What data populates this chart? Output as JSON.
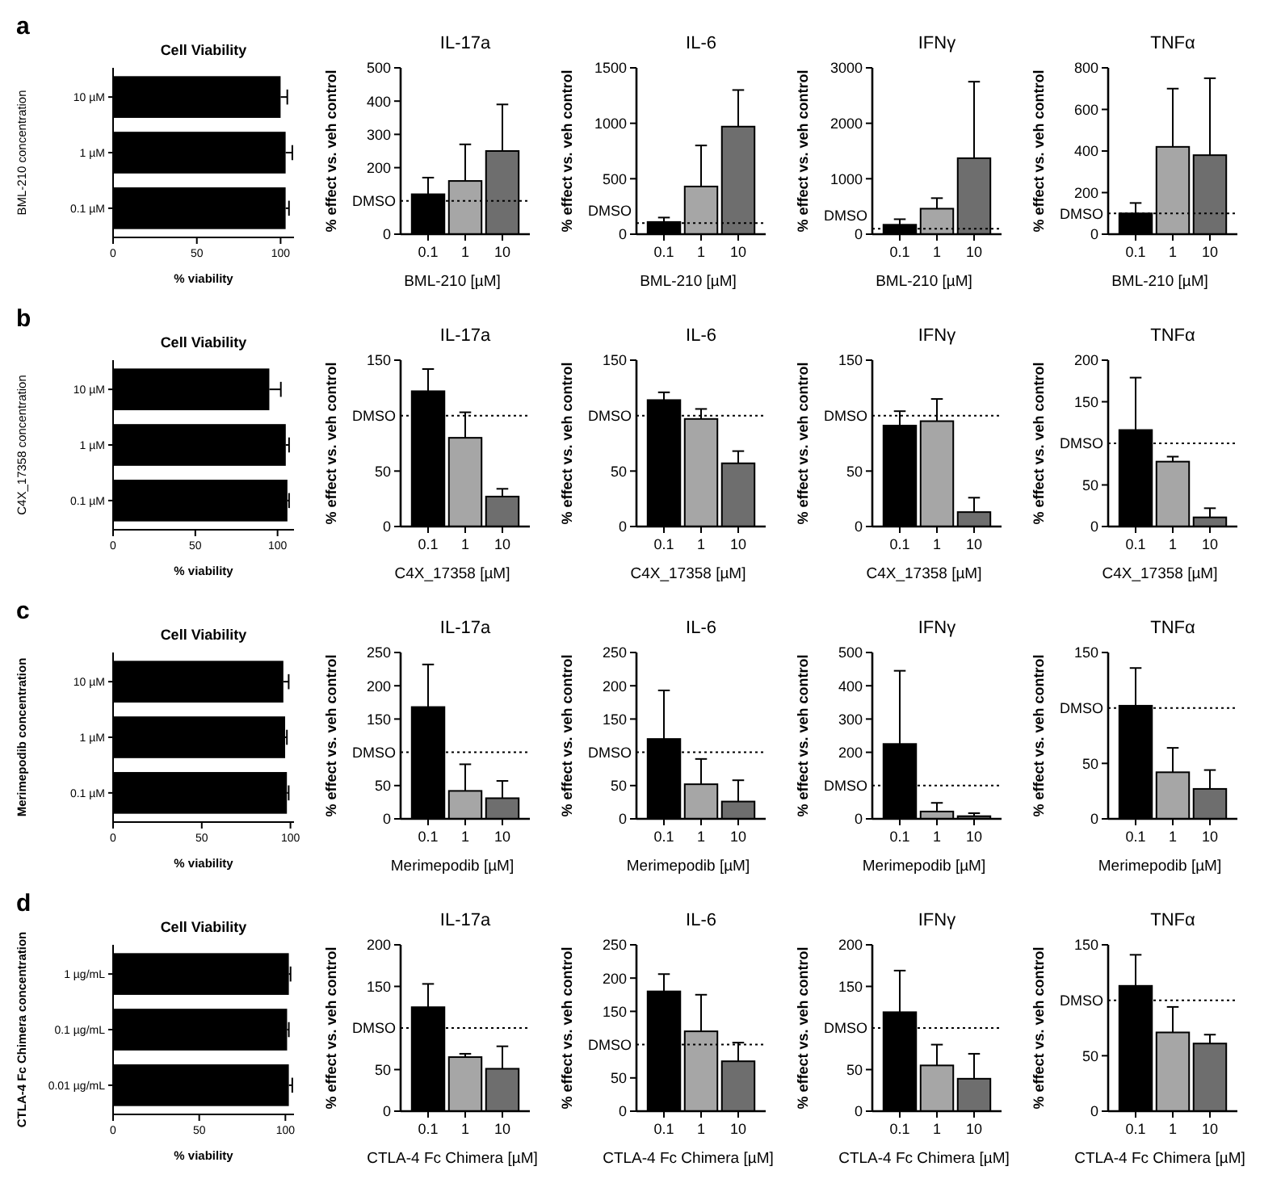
{
  "chart_data": [
    {
      "type": "bar",
      "orientation": "horizontal",
      "title": "Cell Viability",
      "xlabel": "% viability",
      "ylabel": "BML-210 concentration",
      "categories": [
        "10 µM",
        "1 µM",
        "0.1 µM"
      ],
      "values": [
        100,
        103,
        103
      ],
      "errors": [
        [
          100,
          104
        ],
        [
          103,
          107
        ],
        [
          103,
          105
        ]
      ],
      "color": "#000000",
      "xlim": [
        0,
        108
      ],
      "xticks": [
        0,
        50,
        100
      ],
      "annotations": [
        "a"
      ]
    },
    {
      "type": "bar",
      "title": "IL-17a",
      "xlabel": "BML-210 [µM]",
      "ylabel": "% effect vs. veh control",
      "categories": [
        "0.1",
        "1",
        "10"
      ],
      "values": [
        120,
        160,
        250
      ],
      "errors": [
        [
          120,
          170
        ],
        [
          160,
          270
        ],
        [
          250,
          390
        ]
      ],
      "colors": [
        "#000000",
        "#a6a6a6",
        "#6e6e6e"
      ],
      "ylim": [
        0,
        500
      ],
      "yticks": [
        0,
        200,
        300,
        400,
        500
      ],
      "ref_lines": [
        {
          "axis": "y",
          "value": 100,
          "label": "DMSO",
          "line_style": "dotted"
        }
      ]
    },
    {
      "type": "bar",
      "title": "IL-6",
      "xlabel": "BML-210 [µM]",
      "ylabel": "% effect vs. veh control",
      "categories": [
        "0.1",
        "1",
        "10"
      ],
      "values": [
        110,
        430,
        970
      ],
      "errors": [
        [
          110,
          150
        ],
        [
          430,
          800
        ],
        [
          970,
          1300
        ]
      ],
      "colors": [
        "#000000",
        "#a6a6a6",
        "#6e6e6e"
      ],
      "ylim": [
        0,
        1500
      ],
      "yticks": [
        0,
        500,
        1000,
        1500
      ],
      "ref_lines": [
        {
          "axis": "y",
          "value": 100,
          "label": "DMSO",
          "line_style": "dotted"
        }
      ]
    },
    {
      "type": "bar",
      "title": "IFNγ",
      "xlabel": "BML-210 [µM]",
      "ylabel": "% effect vs. veh control",
      "categories": [
        "0.1",
        "1",
        "10"
      ],
      "values": [
        170,
        460,
        1370
      ],
      "errors": [
        [
          170,
          270
        ],
        [
          460,
          650
        ],
        [
          1370,
          2750
        ]
      ],
      "colors": [
        "#000000",
        "#a6a6a6",
        "#6e6e6e"
      ],
      "ylim": [
        0,
        3000
      ],
      "yticks": [
        0,
        1000,
        2000,
        3000
      ],
      "ref_lines": [
        {
          "axis": "y",
          "value": 100,
          "label": "DMSO",
          "line_style": "dotted"
        }
      ]
    },
    {
      "type": "bar",
      "title": "TNFα",
      "xlabel": "BML-210 [µM]",
      "ylabel": "% effect vs. veh control",
      "categories": [
        "0.1",
        "1",
        "10"
      ],
      "values": [
        100,
        420,
        380
      ],
      "errors": [
        [
          100,
          150
        ],
        [
          420,
          700
        ],
        [
          380,
          750
        ]
      ],
      "colors": [
        "#000000",
        "#a6a6a6",
        "#6e6e6e"
      ],
      "ylim": [
        0,
        800
      ],
      "yticks": [
        0,
        200,
        400,
        600,
        800
      ],
      "ref_lines": [
        {
          "axis": "y",
          "value": 100,
          "label": "DMSO",
          "line_style": "dotted"
        }
      ]
    },
    {
      "type": "bar",
      "orientation": "horizontal",
      "title": "Cell Viability",
      "xlabel": "% viability",
      "ylabel": "C4X_17358 concentration",
      "categories": [
        "10 µM",
        "1 µM",
        "0.1 µM"
      ],
      "values": [
        95,
        105,
        106
      ],
      "errors": [
        [
          95,
          102
        ],
        [
          105,
          107
        ],
        [
          106,
          107
        ]
      ],
      "color": "#000000",
      "xlim": [
        0,
        110
      ],
      "xticks": [
        0,
        50,
        100
      ],
      "annotations": [
        "b"
      ]
    },
    {
      "type": "bar",
      "title": "IL-17a",
      "xlabel": "C4X_17358 [µM]",
      "ylabel": "% effect vs. veh control",
      "categories": [
        "0.1",
        "1",
        "10"
      ],
      "values": [
        122,
        80,
        27
      ],
      "errors": [
        [
          122,
          142
        ],
        [
          80,
          103
        ],
        [
          27,
          34
        ]
      ],
      "colors": [
        "#000000",
        "#a6a6a6",
        "#6e6e6e"
      ],
      "ylim": [
        0,
        150
      ],
      "yticks": [
        0,
        50,
        150
      ],
      "ref_lines": [
        {
          "axis": "y",
          "value": 100,
          "label": "DMSO",
          "line_style": "dotted"
        }
      ]
    },
    {
      "type": "bar",
      "title": "IL-6",
      "xlabel": "C4X_17358 [µM]",
      "ylabel": "% effect vs. veh control",
      "categories": [
        "0.1",
        "1",
        "10"
      ],
      "values": [
        114,
        97,
        57
      ],
      "errors": [
        [
          114,
          121
        ],
        [
          97,
          106
        ],
        [
          57,
          68
        ]
      ],
      "colors": [
        "#000000",
        "#a6a6a6",
        "#6e6e6e"
      ],
      "ylim": [
        0,
        150
      ],
      "yticks": [
        0,
        50,
        150
      ],
      "ref_lines": [
        {
          "axis": "y",
          "value": 100,
          "label": "DMSO",
          "line_style": "dotted"
        }
      ]
    },
    {
      "type": "bar",
      "title": "IFNγ",
      "xlabel": "C4X_17358 [µM]",
      "ylabel": "% effect vs. veh control",
      "categories": [
        "0.1",
        "1",
        "10"
      ],
      "values": [
        91,
        95,
        13
      ],
      "errors": [
        [
          91,
          104
        ],
        [
          95,
          115
        ],
        [
          13,
          26
        ]
      ],
      "colors": [
        "#000000",
        "#a6a6a6",
        "#6e6e6e"
      ],
      "ylim": [
        0,
        150
      ],
      "yticks": [
        0,
        50,
        150
      ],
      "ref_lines": [
        {
          "axis": "y",
          "value": 100,
          "label": "DMSO",
          "line_style": "dotted"
        }
      ]
    },
    {
      "type": "bar",
      "title": "TNFα",
      "xlabel": "C4X_17358 [µM]",
      "ylabel": "% effect vs. veh control",
      "categories": [
        "0.1",
        "1",
        "10"
      ],
      "values": [
        116,
        78,
        11
      ],
      "errors": [
        [
          116,
          179
        ],
        [
          78,
          84
        ],
        [
          11,
          22
        ]
      ],
      "colors": [
        "#000000",
        "#a6a6a6",
        "#6e6e6e"
      ],
      "ylim": [
        0,
        200
      ],
      "yticks": [
        0,
        50,
        150,
        200
      ],
      "ref_lines": [
        {
          "axis": "y",
          "value": 100,
          "label": "DMSO",
          "line_style": "dotted"
        }
      ]
    },
    {
      "type": "bar",
      "orientation": "horizontal",
      "title": "Cell Viability",
      "xlabel": "% viability",
      "ylabel": "Merimepodib concentration",
      "categories": [
        "10 µM",
        "1 µM",
        "0.1 µM"
      ],
      "values": [
        96,
        97,
        98
      ],
      "errors": [
        [
          96,
          99
        ],
        [
          97,
          98
        ],
        [
          98,
          99
        ]
      ],
      "color": "#000000",
      "xlim": [
        0,
        102
      ],
      "xticks": [
        0,
        50,
        100
      ],
      "annotations": [
        "c"
      ]
    },
    {
      "type": "bar",
      "title": "IL-17a",
      "xlabel": "Merimepodib [µM]",
      "ylabel": "% effect vs. veh control",
      "categories": [
        "0.1",
        "1",
        "10"
      ],
      "values": [
        168,
        42,
        31
      ],
      "errors": [
        [
          168,
          232
        ],
        [
          42,
          82
        ],
        [
          31,
          57
        ]
      ],
      "colors": [
        "#000000",
        "#a6a6a6",
        "#6e6e6e"
      ],
      "ylim": [
        0,
        250
      ],
      "yticks": [
        0,
        50,
        150,
        200,
        250
      ],
      "ref_lines": [
        {
          "axis": "y",
          "value": 100,
          "label": "DMSO",
          "line_style": "dotted"
        }
      ]
    },
    {
      "type": "bar",
      "title": "IL-6",
      "xlabel": "Merimepodib [µM]",
      "ylabel": "% effect vs. veh control",
      "categories": [
        "0.1",
        "1",
        "10"
      ],
      "values": [
        120,
        52,
        26
      ],
      "errors": [
        [
          120,
          193
        ],
        [
          52,
          90
        ],
        [
          26,
          58
        ]
      ],
      "colors": [
        "#000000",
        "#a6a6a6",
        "#6e6e6e"
      ],
      "ylim": [
        0,
        250
      ],
      "yticks": [
        0,
        50,
        150,
        200,
        250
      ],
      "ref_lines": [
        {
          "axis": "y",
          "value": 100,
          "label": "DMSO",
          "line_style": "dotted"
        }
      ]
    },
    {
      "type": "bar",
      "title": "IFNγ",
      "xlabel": "Merimepodib [µM]",
      "ylabel": "% effect vs. veh control",
      "categories": [
        "0.1",
        "1",
        "10"
      ],
      "values": [
        225,
        22,
        8
      ],
      "errors": [
        [
          225,
          445
        ],
        [
          22,
          48
        ],
        [
          8,
          17
        ]
      ],
      "colors": [
        "#000000",
        "#a6a6a6",
        "#6e6e6e"
      ],
      "ylim": [
        0,
        500
      ],
      "yticks": [
        0,
        200,
        300,
        400,
        500
      ],
      "ref_lines": [
        {
          "axis": "y",
          "value": 100,
          "label": "DMSO",
          "line_style": "dotted"
        }
      ]
    },
    {
      "type": "bar",
      "title": "TNFα",
      "xlabel": "Merimepodib [µM]",
      "ylabel": "% effect vs. veh control",
      "categories": [
        "0.1",
        "1",
        "10"
      ],
      "values": [
        102,
        42,
        27
      ],
      "errors": [
        [
          102,
          136
        ],
        [
          42,
          64
        ],
        [
          27,
          44
        ]
      ],
      "colors": [
        "#000000",
        "#a6a6a6",
        "#6e6e6e"
      ],
      "ylim": [
        0,
        150
      ],
      "yticks": [
        0,
        50,
        150
      ],
      "ref_lines": [
        {
          "axis": "y",
          "value": 100,
          "label": "DMSO",
          "line_style": "dotted"
        }
      ]
    },
    {
      "type": "bar",
      "orientation": "horizontal",
      "title": "Cell Viability",
      "xlabel": "% viability",
      "ylabel": "CTLA-4 Fc Chimera  concentration",
      "categories": [
        "1 µg/mL",
        "0.1 µg/mL",
        "0.01 µg/mL"
      ],
      "values": [
        102,
        101,
        102
      ],
      "errors": [
        [
          102,
          103
        ],
        [
          101,
          102
        ],
        [
          102,
          104
        ]
      ],
      "color": "#000000",
      "xlim": [
        0,
        105
      ],
      "xticks": [
        0,
        50,
        100
      ],
      "annotations": [
        "d"
      ]
    },
    {
      "type": "bar",
      "title": "IL-17a",
      "xlabel": "CTLA-4 Fc Chimera [µM]",
      "ylabel": "% effect vs. veh control",
      "categories": [
        "0.1",
        "1",
        "10"
      ],
      "values": [
        125,
        65,
        51
      ],
      "errors": [
        [
          125,
          153
        ],
        [
          65,
          69
        ],
        [
          51,
          78
        ]
      ],
      "colors": [
        "#000000",
        "#a6a6a6",
        "#6e6e6e"
      ],
      "ylim": [
        0,
        200
      ],
      "yticks": [
        0,
        50,
        150,
        200
      ],
      "ref_lines": [
        {
          "axis": "y",
          "value": 100,
          "label": "DMSO",
          "line_style": "dotted"
        }
      ]
    },
    {
      "type": "bar",
      "title": "IL-6",
      "xlabel": "CTLA-4 Fc Chimera [µM]",
      "ylabel": "% effect vs. veh control",
      "categories": [
        "0.1",
        "1",
        "10"
      ],
      "values": [
        180,
        120,
        75
      ],
      "errors": [
        [
          180,
          206
        ],
        [
          120,
          175
        ],
        [
          75,
          103
        ]
      ],
      "colors": [
        "#000000",
        "#a6a6a6",
        "#6e6e6e"
      ],
      "ylim": [
        0,
        250
      ],
      "yticks": [
        0,
        50,
        150,
        200,
        250
      ],
      "ref_lines": [
        {
          "axis": "y",
          "value": 100,
          "label": "DMSO",
          "line_style": "dotted"
        }
      ]
    },
    {
      "type": "bar",
      "title": "IFNγ",
      "xlabel": "CTLA-4 Fc Chimera [µM]",
      "ylabel": "% effect vs. veh control",
      "categories": [
        "0.1",
        "1",
        "10"
      ],
      "values": [
        119,
        55,
        39
      ],
      "errors": [
        [
          119,
          169
        ],
        [
          55,
          80
        ],
        [
          39,
          69
        ]
      ],
      "colors": [
        "#000000",
        "#a6a6a6",
        "#6e6e6e"
      ],
      "ylim": [
        0,
        200
      ],
      "yticks": [
        0,
        50,
        150,
        200
      ],
      "ref_lines": [
        {
          "axis": "y",
          "value": 100,
          "label": "DMSO",
          "line_style": "dotted"
        }
      ]
    },
    {
      "type": "bar",
      "title": "TNFα",
      "xlabel": "CTLA-4 Fc Chimera [µM]",
      "ylabel": "% effect vs. veh control",
      "categories": [
        "0.1",
        "1",
        "10"
      ],
      "values": [
        113,
        71,
        61
      ],
      "errors": [
        [
          113,
          141
        ],
        [
          71,
          94
        ],
        [
          61,
          69
        ]
      ],
      "colors": [
        "#000000",
        "#a6a6a6",
        "#6e6e6e"
      ],
      "ylim": [
        0,
        150
      ],
      "yticks": [
        0,
        50,
        150
      ],
      "ref_lines": [
        {
          "axis": "y",
          "value": 100,
          "label": "DMSO",
          "line_style": "dotted"
        }
      ]
    }
  ]
}
